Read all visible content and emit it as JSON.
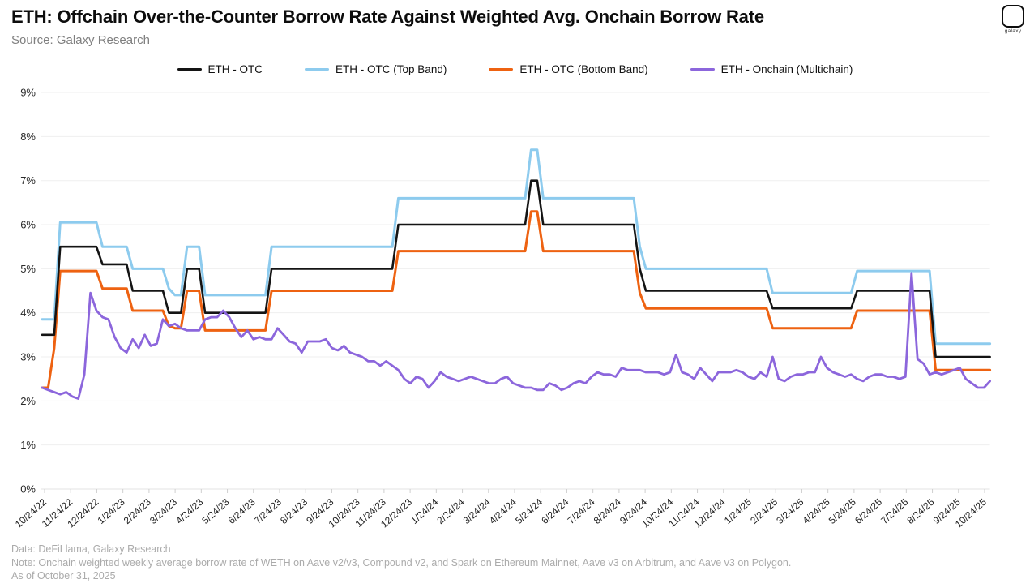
{
  "header": {
    "title": "ETH: Offchain Over-the-Counter Borrow Rate Against Weighted Avg. Onchain Borrow Rate",
    "source": "Source: Galaxy Research",
    "logo_text": "galaxy"
  },
  "footer": {
    "line1": "Data: DeFiLlama, Galaxy Research",
    "line2": "Note: Onchain weighted weekly average borrow rate of WETH on Aave v2/v3, Compound v2, and Spark on Ethereum Mainnet, Aave v3 on Arbitrum, and Aave v3 on Polygon.",
    "line3": "As of October 31, 2025"
  },
  "chart_data": {
    "type": "line",
    "title": "ETH: Offchain Over-the-Counter Borrow Rate Against Weighted Avg. Onchain Borrow Rate",
    "x_cadence": "weekly starting 10/24/22",
    "ylim": [
      0,
      9
    ],
    "grid": "horizontal",
    "legend_position": "top",
    "y_tick_labels": [
      "0%",
      "1%",
      "2%",
      "3%",
      "4%",
      "5%",
      "6%",
      "7%",
      "8%",
      "9%"
    ],
    "x_tick_labels": [
      "10/24/22",
      "11/24/22",
      "12/24/22",
      "1/24/23",
      "2/24/23",
      "3/24/23",
      "4/24/23",
      "5/24/23",
      "6/24/23",
      "7/24/23",
      "8/24/23",
      "9/24/23",
      "10/24/23",
      "11/24/23",
      "12/24/23",
      "1/24/24",
      "2/24/24",
      "3/24/24",
      "4/24/24",
      "5/24/24",
      "6/24/24",
      "7/24/24",
      "8/24/24",
      "9/24/24",
      "10/24/24",
      "11/24/24",
      "12/24/24",
      "1/24/25",
      "2/24/25",
      "3/24/25",
      "4/24/25",
      "5/24/25",
      "6/24/25",
      "7/24/25",
      "8/24/25",
      "9/24/25",
      "10/24/25"
    ],
    "series": [
      {
        "name": "ETH - OTC",
        "color": "#141414",
        "width": 2.6,
        "values": [
          3.5,
          3.5,
          3.5,
          5.5,
          5.5,
          5.5,
          5.5,
          5.5,
          5.5,
          5.5,
          5.1,
          5.1,
          5.1,
          5.1,
          5.1,
          4.5,
          4.5,
          4.5,
          4.5,
          4.5,
          4.5,
          4.0,
          4.0,
          4.0,
          5.0,
          5.0,
          5.0,
          4.0,
          4.0,
          4.0,
          4.0,
          4.0,
          4.0,
          4.0,
          4.0,
          4.0,
          4.0,
          4.0,
          5.0,
          5.0,
          5.0,
          5.0,
          5.0,
          5.0,
          5.0,
          5.0,
          5.0,
          5.0,
          5.0,
          5.0,
          5.0,
          5.0,
          5.0,
          5.0,
          5.0,
          5.0,
          5.0,
          5.0,
          5.0,
          6.0,
          6.0,
          6.0,
          6.0,
          6.0,
          6.0,
          6.0,
          6.0,
          6.0,
          6.0,
          6.0,
          6.0,
          6.0,
          6.0,
          6.0,
          6.0,
          6.0,
          6.0,
          6.0,
          6.0,
          6.0,
          6.0,
          7.0,
          7.0,
          6.0,
          6.0,
          6.0,
          6.0,
          6.0,
          6.0,
          6.0,
          6.0,
          6.0,
          6.0,
          6.0,
          6.0,
          6.0,
          6.0,
          6.0,
          6.0,
          5.0,
          4.5,
          4.5,
          4.5,
          4.5,
          4.5,
          4.5,
          4.5,
          4.5,
          4.5,
          4.5,
          4.5,
          4.5,
          4.5,
          4.5,
          4.5,
          4.5,
          4.5,
          4.5,
          4.5,
          4.5,
          4.5,
          4.1,
          4.1,
          4.1,
          4.1,
          4.1,
          4.1,
          4.1,
          4.1,
          4.1,
          4.1,
          4.1,
          4.1,
          4.1,
          4.1,
          4.5,
          4.5,
          4.5,
          4.5,
          4.5,
          4.5,
          4.5,
          4.5,
          4.5,
          4.5,
          4.5,
          4.5,
          4.5,
          3.0,
          3.0,
          3.0,
          3.0,
          3.0,
          3.0,
          3.0,
          3.0,
          3.0,
          3.0
        ]
      },
      {
        "name": "ETH - OTC (Top Band)",
        "color": "#8DCBEE",
        "width": 3,
        "values": [
          3.85,
          3.85,
          3.85,
          6.05,
          6.05,
          6.05,
          6.05,
          6.05,
          6.05,
          6.05,
          5.5,
          5.5,
          5.5,
          5.5,
          5.5,
          5.0,
          5.0,
          5.0,
          5.0,
          5.0,
          5.0,
          4.55,
          4.4,
          4.4,
          5.5,
          5.5,
          5.5,
          4.4,
          4.4,
          4.4,
          4.4,
          4.4,
          4.4,
          4.4,
          4.4,
          4.4,
          4.4,
          4.4,
          5.5,
          5.5,
          5.5,
          5.5,
          5.5,
          5.5,
          5.5,
          5.5,
          5.5,
          5.5,
          5.5,
          5.5,
          5.5,
          5.5,
          5.5,
          5.5,
          5.5,
          5.5,
          5.5,
          5.5,
          5.5,
          6.6,
          6.6,
          6.6,
          6.6,
          6.6,
          6.6,
          6.6,
          6.6,
          6.6,
          6.6,
          6.6,
          6.6,
          6.6,
          6.6,
          6.6,
          6.6,
          6.6,
          6.6,
          6.6,
          6.6,
          6.6,
          6.6,
          7.7,
          7.7,
          6.6,
          6.6,
          6.6,
          6.6,
          6.6,
          6.6,
          6.6,
          6.6,
          6.6,
          6.6,
          6.6,
          6.6,
          6.6,
          6.6,
          6.6,
          6.6,
          5.5,
          5.0,
          5.0,
          5.0,
          5.0,
          5.0,
          5.0,
          5.0,
          5.0,
          5.0,
          5.0,
          5.0,
          5.0,
          5.0,
          5.0,
          5.0,
          5.0,
          5.0,
          5.0,
          5.0,
          5.0,
          5.0,
          4.45,
          4.45,
          4.45,
          4.45,
          4.45,
          4.45,
          4.45,
          4.45,
          4.45,
          4.45,
          4.45,
          4.45,
          4.45,
          4.45,
          4.95,
          4.95,
          4.95,
          4.95,
          4.95,
          4.95,
          4.95,
          4.95,
          4.95,
          4.95,
          4.95,
          4.95,
          4.95,
          3.3,
          3.3,
          3.3,
          3.3,
          3.3,
          3.3,
          3.3,
          3.3,
          3.3,
          3.3
        ]
      },
      {
        "name": "ETH - OTC (Bottom Band)",
        "color": "#EE6211",
        "width": 3,
        "values": [
          2.3,
          2.3,
          3.2,
          4.95,
          4.95,
          4.95,
          4.95,
          4.95,
          4.95,
          4.95,
          4.55,
          4.55,
          4.55,
          4.55,
          4.55,
          4.05,
          4.05,
          4.05,
          4.05,
          4.05,
          4.05,
          3.7,
          3.65,
          3.65,
          4.5,
          4.5,
          4.5,
          3.6,
          3.6,
          3.6,
          3.6,
          3.6,
          3.6,
          3.6,
          3.6,
          3.6,
          3.6,
          3.6,
          4.5,
          4.5,
          4.5,
          4.5,
          4.5,
          4.5,
          4.5,
          4.5,
          4.5,
          4.5,
          4.5,
          4.5,
          4.5,
          4.5,
          4.5,
          4.5,
          4.5,
          4.5,
          4.5,
          4.5,
          4.5,
          5.4,
          5.4,
          5.4,
          5.4,
          5.4,
          5.4,
          5.4,
          5.4,
          5.4,
          5.4,
          5.4,
          5.4,
          5.4,
          5.4,
          5.4,
          5.4,
          5.4,
          5.4,
          5.4,
          5.4,
          5.4,
          5.4,
          6.3,
          6.3,
          5.4,
          5.4,
          5.4,
          5.4,
          5.4,
          5.4,
          5.4,
          5.4,
          5.4,
          5.4,
          5.4,
          5.4,
          5.4,
          5.4,
          5.4,
          5.4,
          4.45,
          4.1,
          4.1,
          4.1,
          4.1,
          4.1,
          4.1,
          4.1,
          4.1,
          4.1,
          4.1,
          4.1,
          4.1,
          4.1,
          4.1,
          4.1,
          4.1,
          4.1,
          4.1,
          4.1,
          4.1,
          4.1,
          3.65,
          3.65,
          3.65,
          3.65,
          3.65,
          3.65,
          3.65,
          3.65,
          3.65,
          3.65,
          3.65,
          3.65,
          3.65,
          3.65,
          4.05,
          4.05,
          4.05,
          4.05,
          4.05,
          4.05,
          4.05,
          4.05,
          4.05,
          4.05,
          4.05,
          4.05,
          4.05,
          2.7,
          2.7,
          2.7,
          2.7,
          2.7,
          2.7,
          2.7,
          2.7,
          2.7,
          2.7
        ]
      },
      {
        "name": "ETH - Onchain (Multichain)",
        "color": "#8C66DC",
        "width": 2.8,
        "values": [
          2.3,
          2.25,
          2.2,
          2.15,
          2.2,
          2.1,
          2.05,
          2.6,
          4.45,
          4.05,
          3.9,
          3.85,
          3.45,
          3.2,
          3.1,
          3.4,
          3.2,
          3.5,
          3.25,
          3.3,
          3.85,
          3.7,
          3.75,
          3.65,
          3.6,
          3.6,
          3.6,
          3.85,
          3.9,
          3.9,
          4.05,
          3.9,
          3.65,
          3.45,
          3.6,
          3.4,
          3.45,
          3.4,
          3.4,
          3.65,
          3.5,
          3.35,
          3.3,
          3.1,
          3.35,
          3.35,
          3.35,
          3.4,
          3.2,
          3.15,
          3.25,
          3.1,
          3.05,
          3.0,
          2.9,
          2.9,
          2.8,
          2.9,
          2.8,
          2.7,
          2.5,
          2.4,
          2.55,
          2.5,
          2.3,
          2.45,
          2.65,
          2.55,
          2.5,
          2.45,
          2.5,
          2.55,
          2.5,
          2.45,
          2.4,
          2.4,
          2.5,
          2.55,
          2.4,
          2.35,
          2.3,
          2.3,
          2.25,
          2.25,
          2.4,
          2.35,
          2.25,
          2.3,
          2.4,
          2.45,
          2.4,
          2.55,
          2.65,
          2.6,
          2.6,
          2.55,
          2.75,
          2.7,
          2.7,
          2.7,
          2.65,
          2.65,
          2.65,
          2.6,
          2.65,
          3.05,
          2.65,
          2.6,
          2.5,
          2.75,
          2.6,
          2.45,
          2.65,
          2.65,
          2.65,
          2.7,
          2.65,
          2.55,
          2.5,
          2.65,
          2.55,
          3.0,
          2.5,
          2.45,
          2.55,
          2.6,
          2.6,
          2.65,
          2.65,
          3.0,
          2.75,
          2.65,
          2.6,
          2.55,
          2.6,
          2.5,
          2.45,
          2.55,
          2.6,
          2.6,
          2.55,
          2.55,
          2.5,
          2.55,
          4.9,
          2.95,
          2.85,
          2.6,
          2.65,
          2.6,
          2.65,
          2.7,
          2.75,
          2.5,
          2.4,
          2.3,
          2.3,
          2.45
        ]
      }
    ]
  }
}
